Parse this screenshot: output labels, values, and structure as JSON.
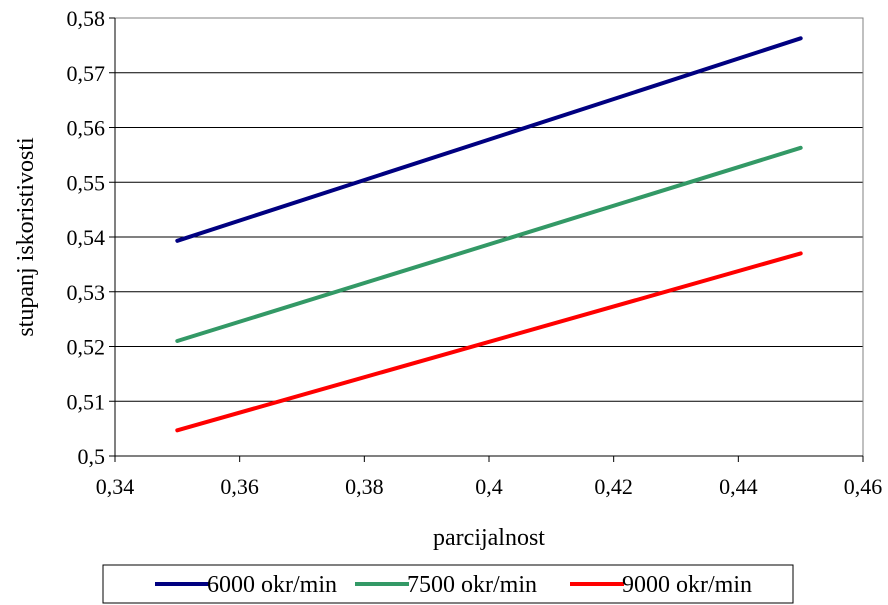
{
  "chart_data": {
    "type": "line",
    "title": "",
    "xlabel": "parcijalnost",
    "ylabel": "stupanj iskoristivosti",
    "xlim": [
      0.34,
      0.46
    ],
    "ylim": [
      0.5,
      0.58
    ],
    "x_ticks": [
      0.34,
      0.36,
      0.38,
      0.4,
      0.42,
      0.44,
      0.46
    ],
    "y_ticks": [
      0.5,
      0.51,
      0.52,
      0.53,
      0.54,
      0.55,
      0.56,
      0.57,
      0.58
    ],
    "x_tick_labels": [
      "0,34",
      "0,36",
      "0,38",
      "0,4",
      "0,42",
      "0,44",
      "0,46"
    ],
    "y_tick_labels": [
      "0,5",
      "0,51",
      "0,52",
      "0,53",
      "0,54",
      "0,55",
      "0,56",
      "0,57",
      "0,58"
    ],
    "grid": "horizontal",
    "legend_position": "bottom",
    "series": [
      {
        "name": "6000 okr/min",
        "color": "#000080",
        "x": [
          0.35,
          0.45
        ],
        "y": [
          0.5393,
          0.5763
        ]
      },
      {
        "name": "7500 okr/min",
        "color": "#339966",
        "x": [
          0.35,
          0.45
        ],
        "y": [
          0.521,
          0.5563
        ]
      },
      {
        "name": "9000 okr/min",
        "color": "#ff0000",
        "x": [
          0.35,
          0.45
        ],
        "y": [
          0.5047,
          0.537
        ]
      }
    ]
  }
}
